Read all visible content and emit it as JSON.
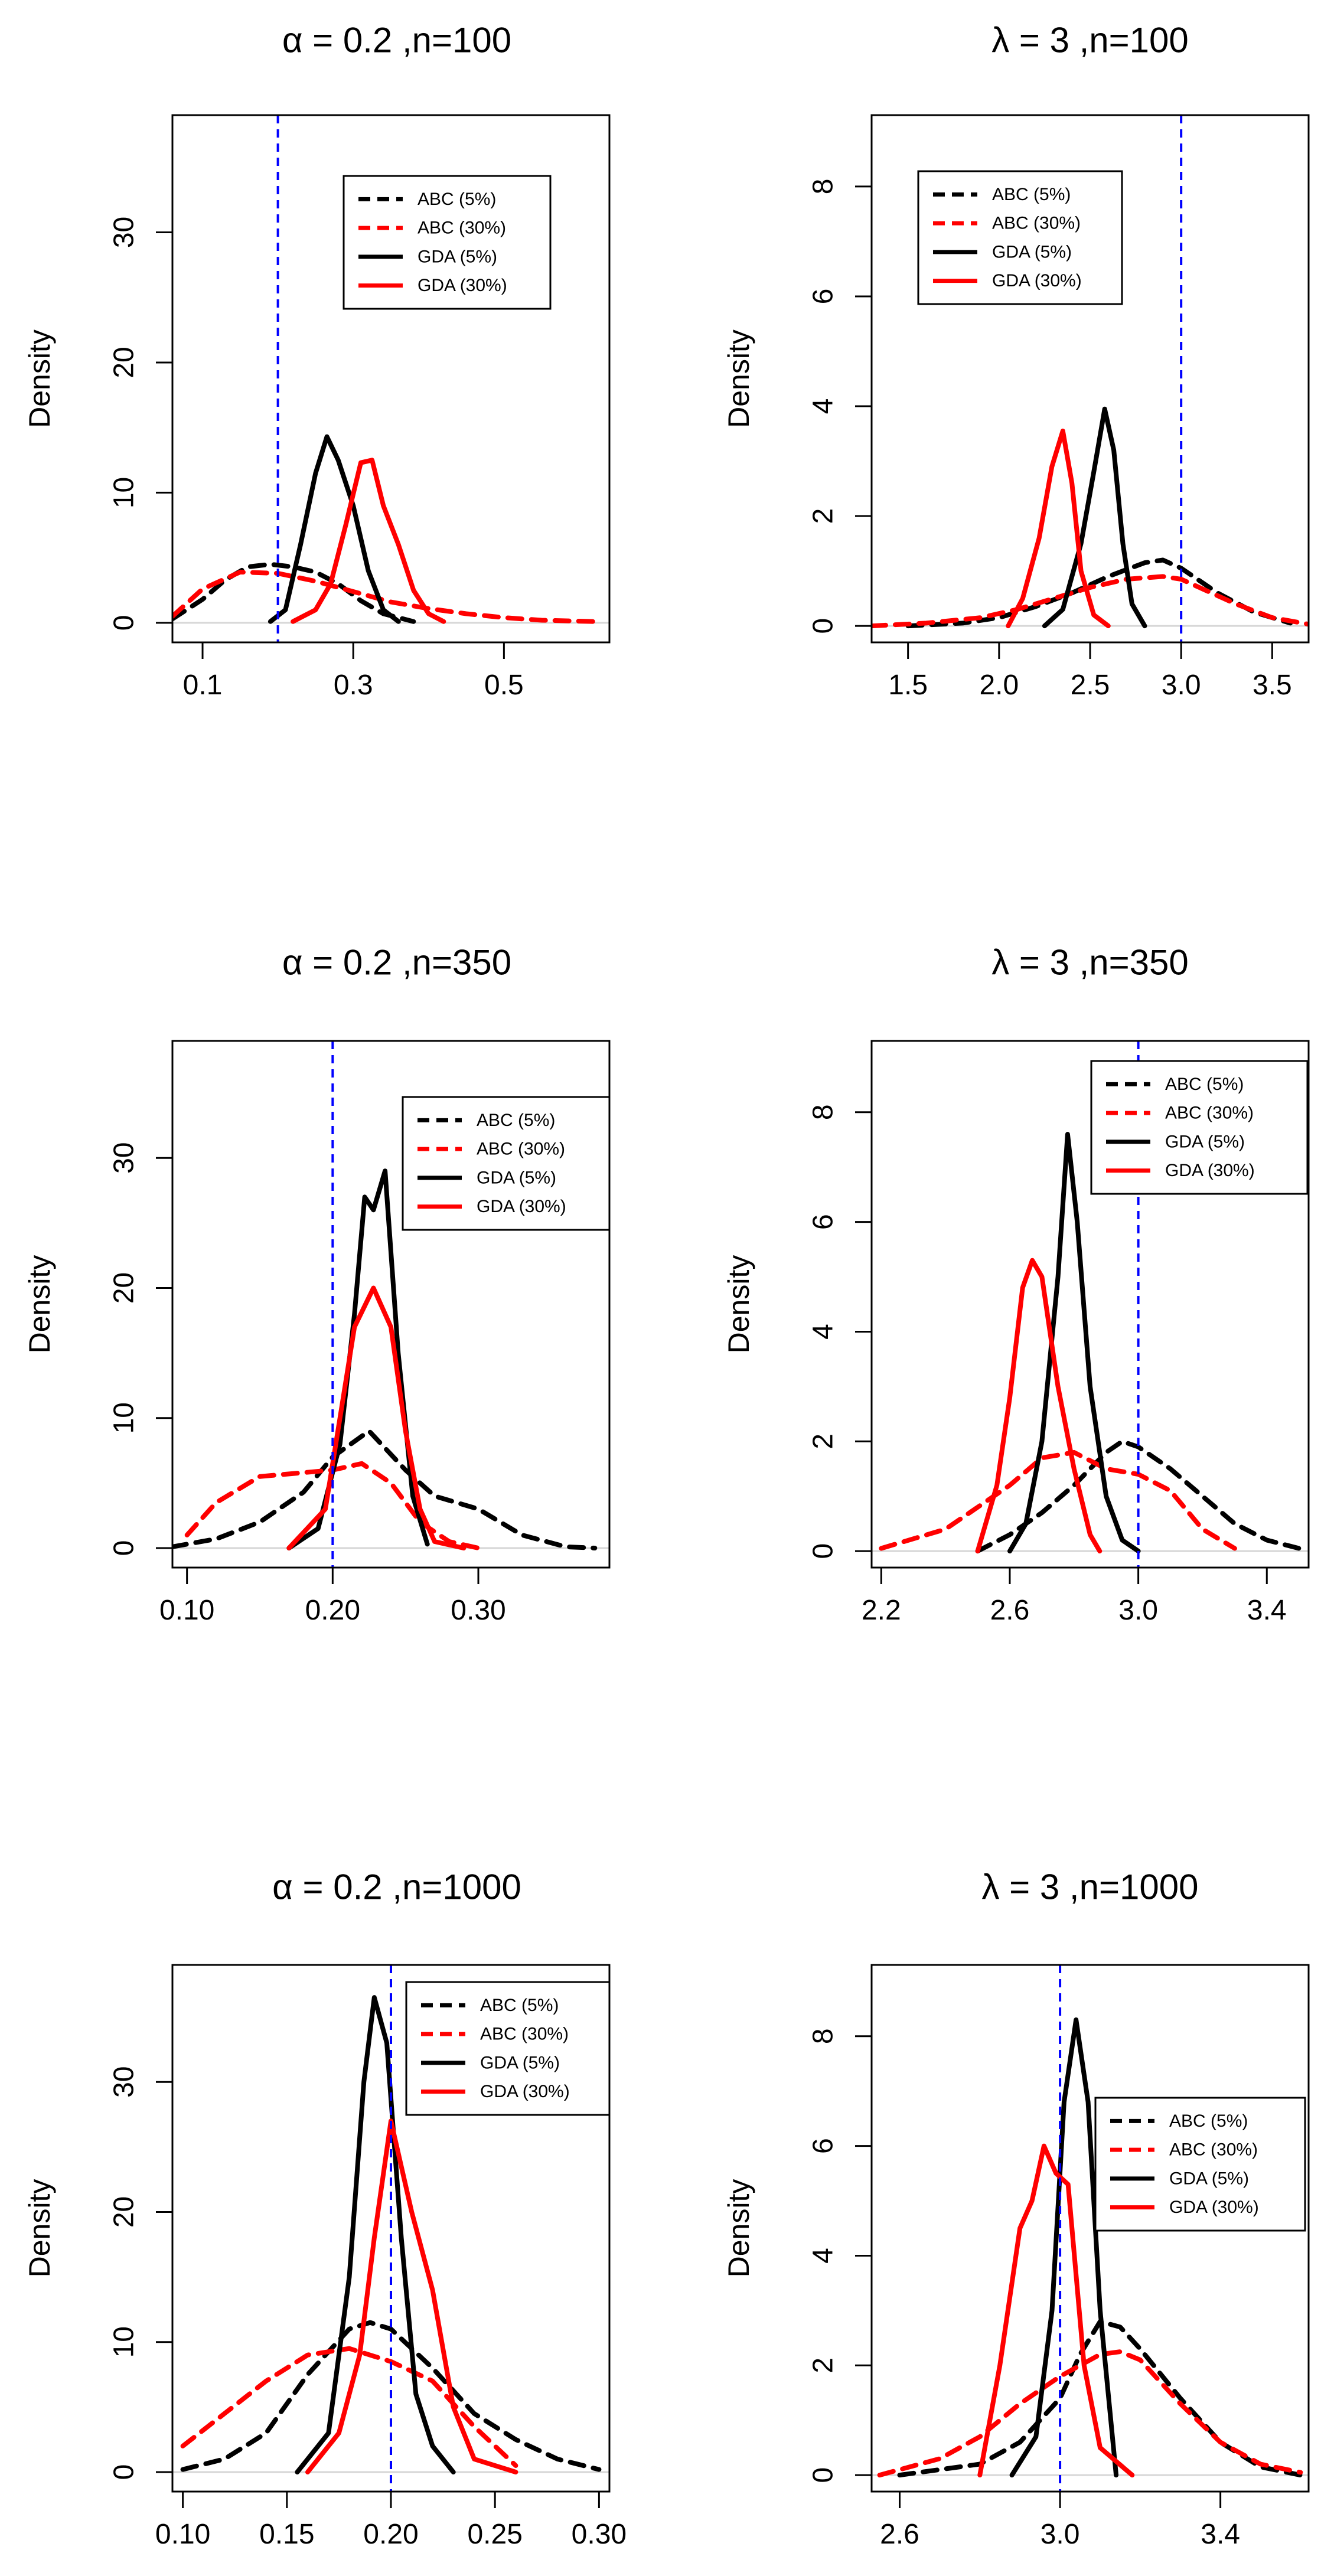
{
  "chart_data": [
    {
      "type": "line",
      "title": "α = 0.2 ,n=100",
      "ylabel": "Density",
      "xlim": [
        0.06,
        0.64
      ],
      "ylim": [
        -1.5,
        39
      ],
      "xticks": [
        0.1,
        0.3,
        0.5
      ],
      "xtick_labels": [
        "0.1",
        "0.3",
        "0.5"
      ],
      "yticks": [
        0,
        10,
        20,
        30
      ],
      "ytick_labels": [
        "0",
        "10",
        "20",
        "30"
      ],
      "true_value": 0.2,
      "legend_position": "top-center",
      "series": [
        {
          "name": "ABC (5%)",
          "color": "#000000",
          "style": "dashed",
          "x": [
            0.06,
            0.1,
            0.13,
            0.16,
            0.19,
            0.22,
            0.25,
            0.28,
            0.31,
            0.34,
            0.38
          ],
          "y": [
            0.3,
            1.8,
            3.3,
            4.3,
            4.5,
            4.3,
            3.9,
            3.0,
            1.7,
            0.7,
            0.1
          ]
        },
        {
          "name": "ABC (30%)",
          "color": "#ff0000",
          "style": "dashed",
          "x": [
            0.06,
            0.1,
            0.15,
            0.2,
            0.25,
            0.3,
            0.35,
            0.4,
            0.45,
            0.5,
            0.55,
            0.62
          ],
          "y": [
            0.5,
            2.6,
            3.9,
            3.8,
            3.2,
            2.4,
            1.6,
            1.1,
            0.7,
            0.4,
            0.2,
            0.1
          ]
        },
        {
          "name": "GDA (5%)",
          "color": "#000000",
          "style": "solid",
          "x": [
            0.19,
            0.21,
            0.23,
            0.25,
            0.265,
            0.28,
            0.3,
            0.32,
            0.34,
            0.36
          ],
          "y": [
            0.1,
            1.0,
            6.0,
            11.5,
            14.3,
            12.5,
            9.0,
            4.0,
            1.0,
            0.1
          ]
        },
        {
          "name": "GDA (30%)",
          "color": "#ff0000",
          "style": "solid",
          "x": [
            0.22,
            0.25,
            0.27,
            0.29,
            0.31,
            0.325,
            0.34,
            0.36,
            0.38,
            0.4,
            0.42
          ],
          "y": [
            0.1,
            1.0,
            3.0,
            7.5,
            12.3,
            12.5,
            9.0,
            6.0,
            2.5,
            0.7,
            0.1
          ]
        }
      ]
    },
    {
      "type": "line",
      "title": "λ = 3 ,n=100",
      "ylabel": "Density",
      "xlim": [
        1.3,
        3.7
      ],
      "ylim": [
        -0.3,
        9.3
      ],
      "xticks": [
        1.5,
        2.0,
        2.5,
        3.0,
        3.5
      ],
      "xtick_labels": [
        "1.5",
        "2.0",
        "2.5",
        "3.0",
        "3.5"
      ],
      "yticks": [
        0,
        2,
        4,
        6,
        8
      ],
      "ytick_labels": [
        "0",
        "2",
        "4",
        "6",
        "8"
      ],
      "true_value": 3.0,
      "legend_position": "top-left",
      "series": [
        {
          "name": "ABC (5%)",
          "color": "#000000",
          "style": "dashed",
          "x": [
            1.5,
            1.8,
            2.0,
            2.2,
            2.4,
            2.6,
            2.8,
            2.9,
            3.0,
            3.2,
            3.4,
            3.6
          ],
          "y": [
            0.0,
            0.05,
            0.15,
            0.35,
            0.6,
            0.9,
            1.15,
            1.2,
            1.05,
            0.6,
            0.25,
            0.05
          ]
        },
        {
          "name": "ABC (30%)",
          "color": "#ff0000",
          "style": "dashed",
          "x": [
            1.3,
            1.6,
            1.9,
            2.1,
            2.3,
            2.5,
            2.7,
            2.9,
            3.0,
            3.1,
            3.3,
            3.5,
            3.7
          ],
          "y": [
            0.0,
            0.05,
            0.15,
            0.3,
            0.5,
            0.7,
            0.85,
            0.9,
            0.85,
            0.7,
            0.4,
            0.15,
            0.03
          ]
        },
        {
          "name": "GDA (5%)",
          "color": "#000000",
          "style": "solid",
          "x": [
            2.25,
            2.35,
            2.45,
            2.52,
            2.58,
            2.63,
            2.68,
            2.73,
            2.8
          ],
          "y": [
            0.0,
            0.3,
            1.5,
            2.8,
            3.95,
            3.2,
            1.5,
            0.4,
            0.0
          ]
        },
        {
          "name": "GDA (30%)",
          "color": "#ff0000",
          "style": "solid",
          "x": [
            2.05,
            2.13,
            2.22,
            2.29,
            2.35,
            2.4,
            2.45,
            2.52,
            2.6
          ],
          "y": [
            0.0,
            0.5,
            1.6,
            2.9,
            3.55,
            2.6,
            1.0,
            0.2,
            0.0
          ]
        }
      ]
    },
    {
      "type": "line",
      "title": "α = 0.2 ,n=350",
      "ylabel": "Density",
      "xlim": [
        0.09,
        0.39
      ],
      "ylim": [
        -1.5,
        39
      ],
      "xticks": [
        0.1,
        0.2,
        0.3
      ],
      "xtick_labels": [
        "0.10",
        "0.20",
        "0.30"
      ],
      "yticks": [
        0,
        10,
        20,
        30
      ],
      "ytick_labels": [
        "0",
        "10",
        "20",
        "30"
      ],
      "true_value": 0.2,
      "legend_position": "top-right",
      "series": [
        {
          "name": "ABC (5%)",
          "color": "#000000",
          "style": "dashed",
          "x": [
            0.09,
            0.12,
            0.15,
            0.18,
            0.2,
            0.225,
            0.25,
            0.27,
            0.3,
            0.33,
            0.36,
            0.38
          ],
          "y": [
            0.1,
            0.7,
            2.0,
            4.3,
            7.0,
            9.0,
            6.0,
            4.0,
            3.0,
            1.0,
            0.1,
            0.0
          ]
        },
        {
          "name": "ABC (30%)",
          "color": "#ff0000",
          "style": "dashed",
          "x": [
            0.1,
            0.12,
            0.15,
            0.18,
            0.2,
            0.22,
            0.24,
            0.26,
            0.28,
            0.3
          ],
          "y": [
            1.0,
            3.5,
            5.5,
            5.8,
            6.0,
            6.5,
            5.0,
            2.0,
            0.5,
            0.0
          ]
        },
        {
          "name": "GDA (5%)",
          "color": "#000000",
          "style": "solid",
          "x": [
            0.17,
            0.19,
            0.205,
            0.215,
            0.222,
            0.228,
            0.236,
            0.245,
            0.255,
            0.265
          ],
          "y": [
            0.0,
            1.5,
            8.0,
            18.0,
            27.0,
            26.0,
            29.0,
            15.0,
            4.0,
            0.3
          ]
        },
        {
          "name": "GDA (30%)",
          "color": "#ff0000",
          "style": "solid",
          "x": [
            0.17,
            0.195,
            0.205,
            0.215,
            0.228,
            0.24,
            0.25,
            0.26,
            0.27,
            0.29
          ],
          "y": [
            0.0,
            3.0,
            10.0,
            17.0,
            20.0,
            17.0,
            9.0,
            3.0,
            0.5,
            0.0
          ]
        }
      ]
    },
    {
      "type": "line",
      "title": "λ = 3 ,n=350",
      "ylabel": "Density",
      "xlim": [
        2.17,
        3.53
      ],
      "ylim": [
        -0.3,
        9.3
      ],
      "xticks": [
        2.2,
        2.6,
        3.0,
        3.4
      ],
      "xtick_labels": [
        "2.2",
        "2.6",
        "3.0",
        "3.4"
      ],
      "yticks": [
        0,
        2,
        4,
        6,
        8
      ],
      "ytick_labels": [
        "0",
        "2",
        "4",
        "6",
        "8"
      ],
      "true_value": 3.0,
      "legend_position": "top-right",
      "series": [
        {
          "name": "ABC (5%)",
          "color": "#000000",
          "style": "dashed",
          "x": [
            2.5,
            2.6,
            2.7,
            2.8,
            2.9,
            2.95,
            3.0,
            3.1,
            3.2,
            3.3,
            3.4,
            3.5
          ],
          "y": [
            0.0,
            0.3,
            0.7,
            1.2,
            1.8,
            2.0,
            1.9,
            1.5,
            1.0,
            0.5,
            0.2,
            0.05
          ]
        },
        {
          "name": "ABC (30%)",
          "color": "#ff0000",
          "style": "dashed",
          "x": [
            2.2,
            2.4,
            2.6,
            2.7,
            2.8,
            2.9,
            3.0,
            3.1,
            3.2,
            3.3
          ],
          "y": [
            0.05,
            0.4,
            1.2,
            1.7,
            1.8,
            1.5,
            1.4,
            1.1,
            0.4,
            0.05
          ]
        },
        {
          "name": "GDA (5%)",
          "color": "#000000",
          "style": "solid",
          "x": [
            2.6,
            2.65,
            2.7,
            2.75,
            2.78,
            2.81,
            2.85,
            2.9,
            2.95,
            3.0
          ],
          "y": [
            0.0,
            0.5,
            2.0,
            5.0,
            7.6,
            6.0,
            3.0,
            1.0,
            0.2,
            0.0
          ]
        },
        {
          "name": "GDA (30%)",
          "color": "#ff0000",
          "style": "solid",
          "x": [
            2.5,
            2.56,
            2.6,
            2.64,
            2.67,
            2.7,
            2.75,
            2.8,
            2.85,
            2.88
          ],
          "y": [
            0.0,
            1.2,
            2.8,
            4.8,
            5.3,
            5.0,
            3.0,
            1.5,
            0.3,
            0.0
          ]
        }
      ]
    },
    {
      "type": "line",
      "title": "α = 0.2 ,n=1000",
      "ylabel": "Density",
      "xlim": [
        0.095,
        0.305
      ],
      "ylim": [
        -1.5,
        39
      ],
      "xticks": [
        0.1,
        0.15,
        0.2,
        0.25,
        0.3
      ],
      "xtick_labels": [
        "0.10",
        "0.15",
        "0.20",
        "0.25",
        "0.30"
      ],
      "yticks": [
        0,
        10,
        20,
        30
      ],
      "ytick_labels": [
        "0",
        "10",
        "20",
        "30"
      ],
      "true_value": 0.2,
      "legend_position": "top-right",
      "series": [
        {
          "name": "ABC (5%)",
          "color": "#000000",
          "style": "dashed",
          "x": [
            0.1,
            0.12,
            0.14,
            0.16,
            0.18,
            0.19,
            0.2,
            0.22,
            0.24,
            0.26,
            0.28,
            0.3
          ],
          "y": [
            0.2,
            1.0,
            3.0,
            7.5,
            11.0,
            11.5,
            11.0,
            8.0,
            4.5,
            2.5,
            1.0,
            0.2
          ]
        },
        {
          "name": "ABC (30%)",
          "color": "#ff0000",
          "style": "dashed",
          "x": [
            0.1,
            0.12,
            0.14,
            0.16,
            0.18,
            0.2,
            0.22,
            0.24,
            0.26
          ],
          "y": [
            2.0,
            4.5,
            7.0,
            9.0,
            9.5,
            8.5,
            7.0,
            3.5,
            0.5
          ]
        },
        {
          "name": "GDA (5%)",
          "color": "#000000",
          "style": "solid",
          "x": [
            0.155,
            0.17,
            0.18,
            0.187,
            0.192,
            0.198,
            0.205,
            0.212,
            0.22,
            0.23
          ],
          "y": [
            0.0,
            3.0,
            15.0,
            30.0,
            36.5,
            33.0,
            18.0,
            6.0,
            2.0,
            0.0
          ]
        },
        {
          "name": "GDA (30%)",
          "color": "#ff0000",
          "style": "solid",
          "x": [
            0.16,
            0.175,
            0.185,
            0.192,
            0.2,
            0.21,
            0.22,
            0.23,
            0.24,
            0.26
          ],
          "y": [
            0.0,
            3.0,
            9.0,
            18.0,
            27.0,
            20.0,
            14.0,
            5.0,
            1.0,
            0.0
          ]
        }
      ]
    },
    {
      "type": "line",
      "title": "λ = 3 ,n=1000",
      "ylabel": "Density",
      "xlim": [
        2.53,
        3.62
      ],
      "ylim": [
        -0.3,
        9.3
      ],
      "xticks": [
        2.6,
        3.0,
        3.4
      ],
      "xtick_labels": [
        "2.6",
        "3.0",
        "3.4"
      ],
      "yticks": [
        0,
        2,
        4,
        6,
        8
      ],
      "ytick_labels": [
        "0",
        "2",
        "4",
        "6",
        "8"
      ],
      "true_value": 3.0,
      "legend_position": "top-right",
      "series": [
        {
          "name": "ABC (5%)",
          "color": "#000000",
          "style": "dashed",
          "x": [
            2.6,
            2.8,
            2.9,
            3.0,
            3.05,
            3.1,
            3.15,
            3.2,
            3.3,
            3.4,
            3.5,
            3.6
          ],
          "y": [
            0.0,
            0.2,
            0.6,
            1.4,
            2.2,
            2.8,
            2.7,
            2.3,
            1.4,
            0.6,
            0.15,
            0.0
          ]
        },
        {
          "name": "ABC (30%)",
          "color": "#ff0000",
          "style": "dashed",
          "x": [
            2.55,
            2.7,
            2.8,
            2.9,
            3.0,
            3.1,
            3.15,
            3.2,
            3.3,
            3.4,
            3.5,
            3.6
          ],
          "y": [
            0.0,
            0.3,
            0.7,
            1.3,
            1.8,
            2.2,
            2.25,
            2.1,
            1.3,
            0.6,
            0.2,
            0.05
          ]
        },
        {
          "name": "GDA (5%)",
          "color": "#000000",
          "style": "solid",
          "x": [
            2.88,
            2.94,
            2.98,
            3.01,
            3.04,
            3.07,
            3.1,
            3.14
          ],
          "y": [
            0.0,
            0.7,
            3.0,
            6.8,
            8.3,
            6.8,
            3.0,
            0.0
          ]
        },
        {
          "name": "GDA (30%)",
          "color": "#ff0000",
          "style": "solid",
          "x": [
            2.8,
            2.85,
            2.9,
            2.93,
            2.96,
            2.99,
            3.02,
            3.06,
            3.1,
            3.18
          ],
          "y": [
            0.0,
            2.0,
            4.5,
            5.0,
            6.0,
            5.5,
            5.3,
            2.0,
            0.5,
            0.0
          ]
        }
      ]
    }
  ]
}
